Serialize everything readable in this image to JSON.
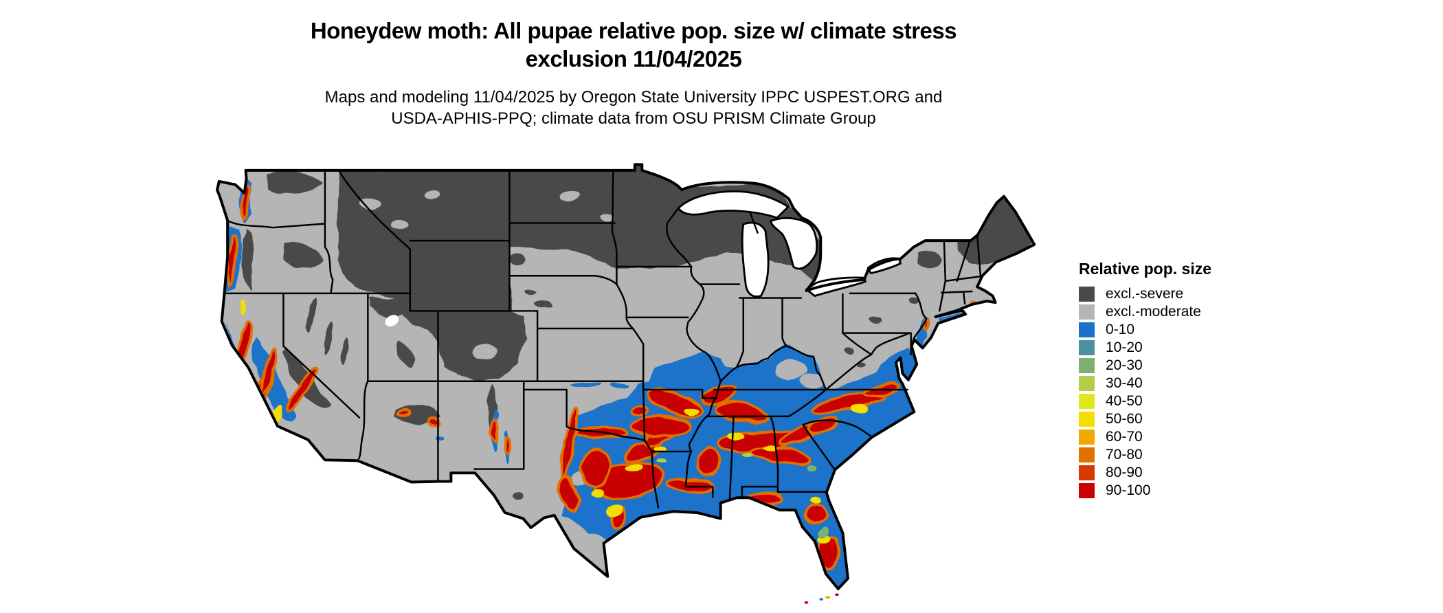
{
  "header": {
    "title_line1": "Honeydew moth: All pupae relative pop. size w/ climate stress",
    "title_line2": "exclusion 11/04/2025",
    "credit_line1": "Maps and modeling 11/04/2025 by Oregon State University IPPC USPEST.ORG and",
    "credit_line2": "USDA-APHIS-PPQ; climate data from OSU PRISM Climate Group"
  },
  "legend": {
    "title": "Relative pop. size",
    "items": [
      {
        "label": "excl.-severe",
        "color": "#4a4a4a"
      },
      {
        "label": "excl.-moderate",
        "color": "#b5b5b5"
      },
      {
        "label": "0-10",
        "color": "#1b73c9"
      },
      {
        "label": "10-20",
        "color": "#4a929d"
      },
      {
        "label": "20-30",
        "color": "#7cb172"
      },
      {
        "label": "30-40",
        "color": "#b2cf45"
      },
      {
        "label": "40-50",
        "color": "#e2e71d"
      },
      {
        "label": "50-60",
        "color": "#f6dd00"
      },
      {
        "label": "60-70",
        "color": "#f0a900"
      },
      {
        "label": "70-80",
        "color": "#e17000"
      },
      {
        "label": "80-90",
        "color": "#d63a00"
      },
      {
        "label": "90-100",
        "color": "#c80101"
      }
    ]
  },
  "map": {
    "region": "contiguous United States",
    "border_color": "#000000",
    "water_color": "#ffffff"
  },
  "chart_data": {
    "type": "heatmap",
    "subtype": "choropleth-raster-map",
    "title": "Honeydew moth: All pupae relative pop. size w/ climate stress exclusion 11/04/2025",
    "legend_title": "Relative pop. size",
    "categories": [
      "excl.-severe",
      "excl.-moderate",
      "0-10",
      "10-20",
      "20-30",
      "30-40",
      "40-50",
      "50-60",
      "60-70",
      "70-80",
      "80-90",
      "90-100"
    ],
    "category_colors": [
      "#4a4a4a",
      "#b5b5b5",
      "#1b73c9",
      "#4a929d",
      "#7cb172",
      "#b2cf45",
      "#e2e71d",
      "#f6dd00",
      "#f0a900",
      "#e17000",
      "#d63a00",
      "#c80101"
    ],
    "legend_position": "right",
    "region_summary": {
      "excl_severe": "northern tier (MT, ND, MN, WI, MI, ME, northern Rockies, Sierra/Cascade crests)",
      "excl_moderate": "central band (Pacific NW interior, Great Basin, central Plains, Corn Belt, Appalachians)",
      "pop_0_10": "southern band (east TX through Gulf states, Southeast, FL, Atlantic coastal plain, CA valleys and coast)",
      "pop_90_100": "mottled patches across central TX, Ozarks, TN valley, MS/AL/GA fall line, Carolinas piedmont, central FL, CA coast ranges"
    }
  }
}
